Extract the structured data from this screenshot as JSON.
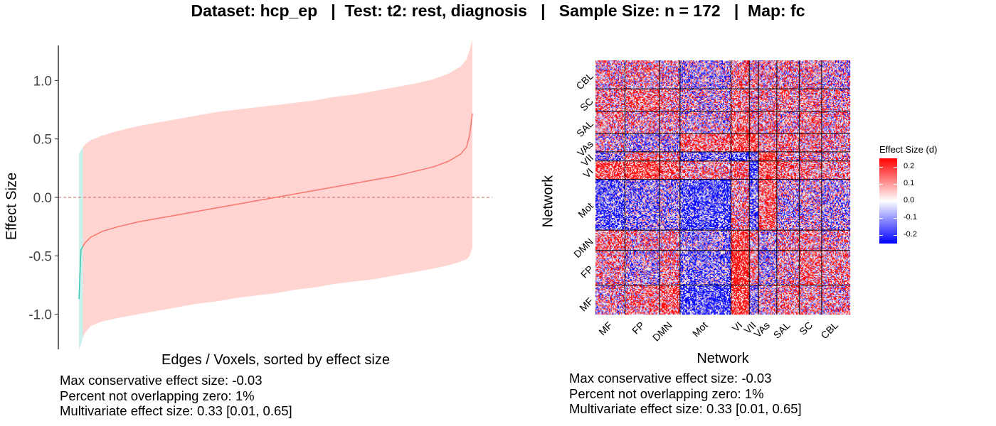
{
  "title": "Dataset: hcp_ep   |  Test: t2: rest, diagnosis   |   Sample Size: n = 172   |  Map: fc",
  "left_panel": {
    "ylabel": "Effect Size",
    "xlabel": "Edges / Voxels, sorted by effect size",
    "stats": [
      "Max conservative effect size: -0.03",
      "Percent not overlapping zero: 1%",
      "Multivariate effect size: 0.33 [0.01, 0.65]"
    ]
  },
  "right_panel": {
    "ylabel": "Network",
    "xlabel": "Network",
    "stats": [
      "Max conservative effect size: -0.03",
      "Percent not overlapping zero: 1%",
      "Multivariate effect size: 0.33 [0.01, 0.65]"
    ],
    "legend_title": "Effect Size (d)",
    "legend_ticks": [
      "0.2",
      "0.1",
      "0.0",
      "-0.1",
      "-0.2"
    ]
  },
  "colors": {
    "ci_band": "#ffd4d1",
    "ci_band_overlap": "#c9f0ec",
    "curve": "#f8766d",
    "curve_overlap": "#3ec9b4",
    "zero_line": "#c46a64",
    "positive": "#ff0000",
    "negative": "#0000ff"
  },
  "chart_data": [
    {
      "type": "line",
      "title": "",
      "xlabel": "Edges / Voxels, sorted by effect size",
      "ylabel": "Effect Size",
      "ylim": [
        -1.3,
        1.3
      ],
      "yticks": [
        "1.0",
        "0.5",
        "0.0",
        "-0.5",
        "-1.0"
      ],
      "ytick_values": [
        1.0,
        0.5,
        0.0,
        -0.5,
        -1.0
      ],
      "x_percentile": [
        0,
        0.5,
        1,
        1.5,
        3,
        6,
        10,
        15,
        20,
        25,
        30,
        35,
        40,
        45,
        50,
        55,
        60,
        65,
        70,
        75,
        80,
        85,
        90,
        94,
        97,
        98.5,
        99.3,
        100
      ],
      "estimate": [
        -0.87,
        -0.45,
        -0.42,
        -0.39,
        -0.34,
        -0.29,
        -0.25,
        -0.21,
        -0.18,
        -0.15,
        -0.12,
        -0.09,
        -0.06,
        -0.03,
        0.0,
        0.03,
        0.06,
        0.09,
        0.12,
        0.15,
        0.18,
        0.22,
        0.26,
        0.31,
        0.37,
        0.43,
        0.53,
        0.72
      ],
      "ci_lower": [
        -1.3,
        -1.26,
        -1.2,
        -1.16,
        -1.1,
        -1.06,
        -1.03,
        -1.0,
        -0.97,
        -0.94,
        -0.91,
        -0.89,
        -0.86,
        -0.84,
        -0.82,
        -0.79,
        -0.77,
        -0.74,
        -0.72,
        -0.7,
        -0.67,
        -0.64,
        -0.61,
        -0.58,
        -0.55,
        -0.53,
        -0.5,
        -0.43
      ],
      "ci_upper": [
        0.38,
        0.4,
        0.43,
        0.45,
        0.49,
        0.53,
        0.57,
        0.61,
        0.64,
        0.67,
        0.7,
        0.73,
        0.75,
        0.77,
        0.79,
        0.81,
        0.83,
        0.86,
        0.88,
        0.91,
        0.94,
        0.97,
        1.01,
        1.06,
        1.12,
        1.18,
        1.26,
        1.35
      ],
      "overlap_zero_segment_end_percentile": 1,
      "reference_line": 0.0
    },
    {
      "type": "heatmap",
      "xlabel": "Network",
      "ylabel": "Network",
      "x_categories": [
        "MF",
        "FP",
        "DMN",
        "Mot",
        "VI",
        "VII",
        "VAs",
        "SAL",
        "SC",
        "CBL"
      ],
      "y_categories": [
        "CBL",
        "SC",
        "SAL",
        "VAs",
        "VII",
        "VI",
        "Mot",
        "DMN",
        "FP",
        "MF"
      ],
      "color_range": [
        -0.25,
        0.25
      ],
      "legend_title": "Effect Size (d)",
      "block_sizes": [
        29,
        34,
        20,
        50,
        18,
        9,
        18,
        22,
        22,
        28
      ],
      "block_means": [
        [
          0.02,
          0.06,
          0.1,
          -0.12,
          0.14,
          -0.06,
          0.02,
          0.06,
          0.04,
          0.03
        ],
        [
          0.04,
          -0.02,
          0.05,
          -0.08,
          0.16,
          0.06,
          -0.04,
          0.03,
          0.08,
          0.05
        ],
        [
          0.08,
          0.03,
          0.04,
          -0.05,
          0.12,
          0.04,
          -0.02,
          0.04,
          0.05,
          0.02
        ],
        [
          -0.1,
          -0.06,
          -0.04,
          -0.12,
          0.04,
          -0.1,
          0.1,
          -0.02,
          0.0,
          -0.03
        ],
        [
          0.12,
          0.14,
          0.1,
          0.05,
          0.08,
          -0.15,
          0.12,
          0.08,
          0.06,
          0.06
        ],
        [
          -0.06,
          0.06,
          0.05,
          -0.08,
          -0.12,
          -0.08,
          0.15,
          0.03,
          0.03,
          0.02
        ],
        [
          0.0,
          -0.04,
          -0.02,
          0.09,
          0.13,
          0.13,
          0.06,
          0.06,
          0.04,
          0.03
        ],
        [
          0.06,
          0.03,
          0.04,
          0.0,
          0.09,
          0.04,
          0.05,
          0.02,
          0.06,
          0.03
        ],
        [
          0.04,
          0.08,
          0.05,
          0.0,
          0.07,
          0.03,
          0.04,
          0.06,
          0.05,
          0.02
        ],
        [
          0.03,
          0.04,
          0.02,
          -0.03,
          0.06,
          0.02,
          0.03,
          0.03,
          0.02,
          0.0
        ]
      ]
    }
  ]
}
